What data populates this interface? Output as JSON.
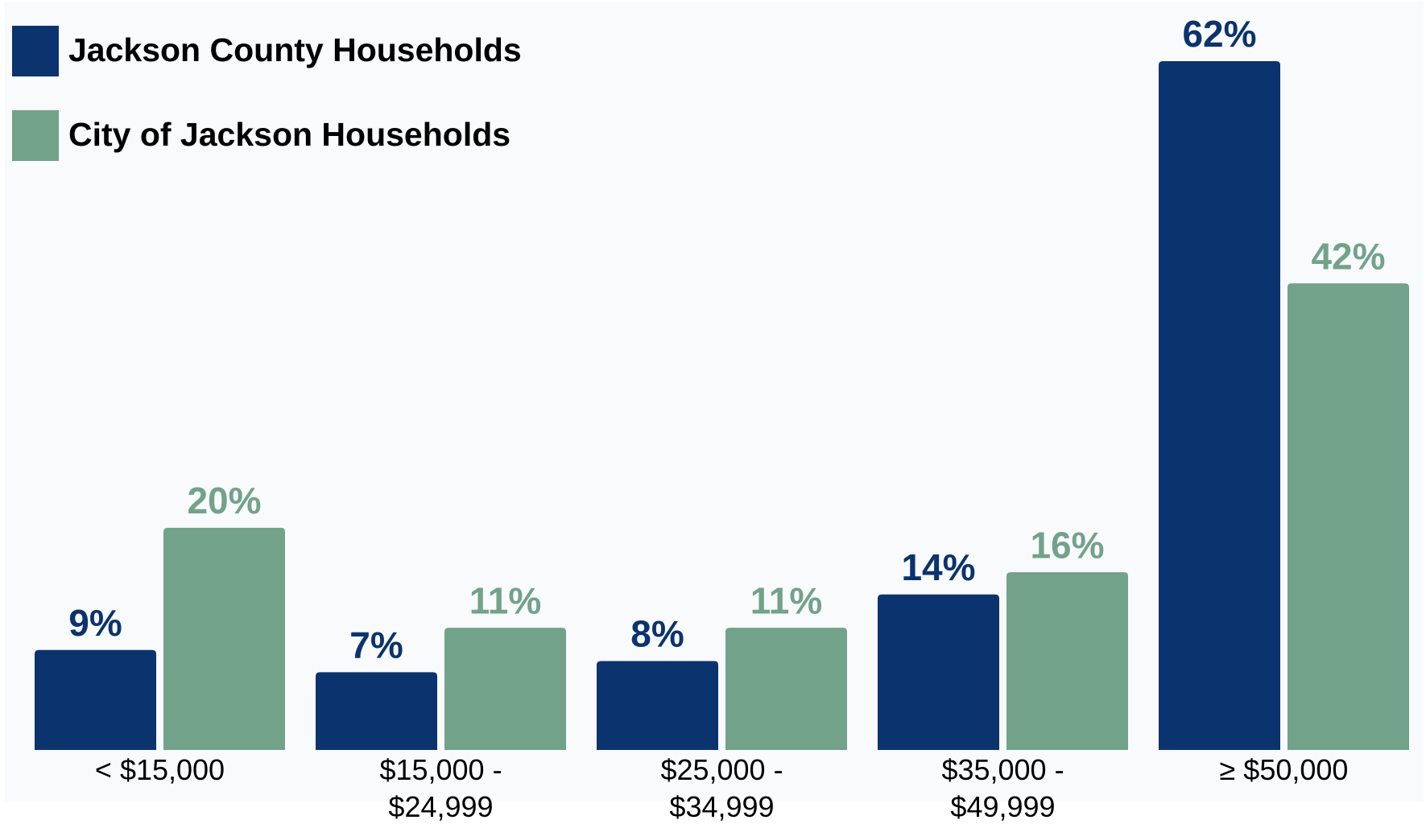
{
  "chart_data": {
    "type": "bar",
    "categories": [
      "< $15,000",
      "$15,000 - $24,999",
      "$25,000 - $34,999",
      "$35,000 - $49,999",
      "≥ $50,000"
    ],
    "series": [
      {
        "name": "Jackson County Households",
        "color": "#0b336d",
        "values": [
          9,
          7,
          8,
          14,
          62
        ],
        "value_labels": [
          "9%",
          "7%",
          "8%",
          "14%",
          "62%"
        ]
      },
      {
        "name": "City of Jackson Households",
        "color": "#72a28a",
        "values": [
          20,
          11,
          11,
          16,
          42
        ],
        "value_labels": [
          "20%",
          "11%",
          "11%",
          "16%",
          "42%"
        ]
      }
    ],
    "legend": "top-left"
  }
}
